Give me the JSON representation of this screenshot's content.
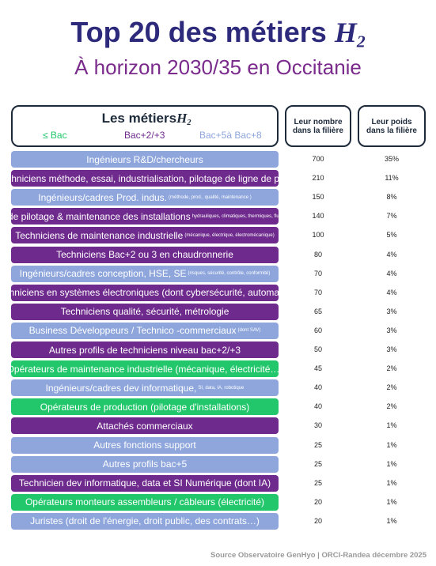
{
  "header": {
    "title": "Top 20 des métiers",
    "title_symbol": "H",
    "title_subscript": "2",
    "subtitle": "À horizon 2030/35 en Occitanie"
  },
  "table_header": {
    "title": "Les métiers",
    "title_symbol": "H",
    "title_subscript": "2",
    "legend": [
      {
        "name": "≤ Bac",
        "color": "#22c76b"
      },
      {
        "name": "Bac+2/+3",
        "color": "#6e2a8c"
      },
      {
        "name": "Bac+5à Bac+8",
        "color": "#8ea6dc"
      }
    ],
    "columns": [
      "Leur nombre dans la filière",
      "Leur poids dans la filière"
    ]
  },
  "table": {
    "rows": [
      {
        "label": "Ingénieurs R&D/chercheurs",
        "detail": null,
        "color": "#8ea6dc",
        "count": 700,
        "share": "35%"
      },
      {
        "label": "Techniciens méthode, essai, industrialisation, pilotage de ligne de prod",
        "detail": null,
        "color": "#6e2a8c",
        "count": 210,
        "share": "11%"
      },
      {
        "label": "Ingénieurs/cadres Prod. indus.",
        "detail": "(méthode, prod., qualité, maintenance   )",
        "color": "#8ea6dc",
        "count": 150,
        "share": "8%"
      },
      {
        "label": "Tech. de pilotage & maintenance des installations",
        "detail": "hydrauliques, climatiques, thermiques, fluidiques, gaz..",
        "color": "#6e2a8c",
        "count": 140,
        "share": "7%"
      },
      {
        "label": "Techniciens de maintenance industrielle",
        "detail": "(mécanique, électrique, électromécanique)",
        "color": "#6e2a8c",
        "count": 100,
        "share": "5%"
      },
      {
        "label": "Techniciens Bac+2 ou 3 en chaudronnerie",
        "detail": null,
        "color": "#6e2a8c",
        "count": 80,
        "share": "4%"
      },
      {
        "label": "Ingénieurs/cadres conception, HSE, SE",
        "detail": "(risques, sécurité, contrôle, conformité)",
        "color": "#8ea6dc",
        "count": 70,
        "share": "4%"
      },
      {
        "label": "Techniciens en systèmes électroniques (dont cybersécurité, automates)",
        "detail": null,
        "color": "#6e2a8c",
        "count": 70,
        "share": "4%"
      },
      {
        "label": "Techniciens qualité, sécurité, métrologie",
        "detail": null,
        "color": "#6e2a8c",
        "count": 65,
        "share": "3%"
      },
      {
        "label": "Business Développeurs / Technico  -commerciaux",
        "detail": "(dont SAV)",
        "color": "#8ea6dc",
        "count": 60,
        "share": "3%"
      },
      {
        "label": "Autres profils de techniciens niveau bac+2/+3",
        "detail": null,
        "color": "#6e2a8c",
        "count": 50,
        "share": "3%"
      },
      {
        "label": "Opérateurs de maintenance industrielle (mécanique, électricité…)",
        "detail": null,
        "color": "#22c76b",
        "count": 45,
        "share": "2%"
      },
      {
        "label": "Ingénieurs/cadres dev informatique,",
        "detail": "SI, data, IA, robotique",
        "color": "#8ea6dc",
        "count": 40,
        "share": "2%"
      },
      {
        "label": "Opérateurs de production (pilotage d'installations)",
        "detail": null,
        "color": "#22c76b",
        "count": 40,
        "share": "2%"
      },
      {
        "label": "Attachés commerciaux",
        "detail": null,
        "color": "#6e2a8c",
        "count": 30,
        "share": "1%"
      },
      {
        "label": "Autres fonctions support",
        "detail": null,
        "color": "#8ea6dc",
        "count": 25,
        "share": "1%"
      },
      {
        "label": "Autres profils bac+5",
        "detail": null,
        "color": "#8ea6dc",
        "count": 25,
        "share": "1%"
      },
      {
        "label": "Technicien dev informatique, data et SI Numérique (dont IA)",
        "detail": null,
        "color": "#6e2a8c",
        "count": 25,
        "share": "1%"
      },
      {
        "label": "Opérateurs monteurs assembleurs / câbleurs (électricité)",
        "detail": null,
        "color": "#22c76b",
        "count": 20,
        "share": "1%"
      },
      {
        "label": "Juristes (droit de l'énergie, droit public, des contrats…)",
        "detail": null,
        "color": "#8ea6dc",
        "count": 20,
        "share": "1%"
      }
    ]
  },
  "footer": {
    "source": "Source Observatoire GenHyo | ORCI-Randea décembre 2025"
  }
}
